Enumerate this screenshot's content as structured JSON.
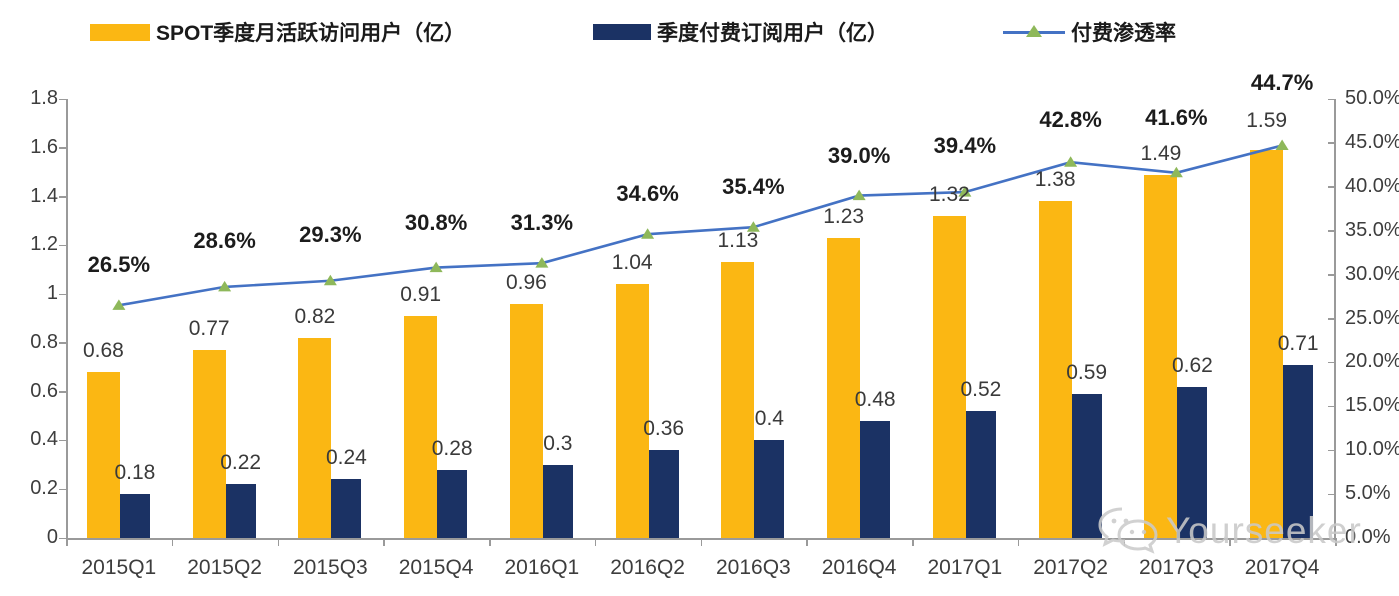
{
  "watermark": {
    "text": "Yourseeker",
    "icon": "wechat-icon"
  },
  "chart_data": {
    "type": "combo-bar-line",
    "categories": [
      "2015Q1",
      "2015Q2",
      "2015Q3",
      "2015Q4",
      "2016Q1",
      "2016Q2",
      "2016Q3",
      "2016Q4",
      "2017Q1",
      "2017Q2",
      "2017Q3",
      "2017Q4"
    ],
    "series": [
      {
        "name": "SPOT季度月活跃访问用户（亿）",
        "type": "bar",
        "axis": "left",
        "color": "#FBB713",
        "values": [
          0.68,
          0.77,
          0.82,
          0.91,
          0.96,
          1.04,
          1.13,
          1.23,
          1.32,
          1.38,
          1.49,
          1.59
        ],
        "labels": [
          "0.68",
          "0.77",
          "0.82",
          "0.91",
          "0.96",
          "1.04",
          "1.13",
          "1.23",
          "1.32",
          "1.38",
          "1.49",
          "1.59"
        ]
      },
      {
        "name": "季度付费订阅用户（亿）",
        "type": "bar",
        "axis": "left",
        "color": "#1B3264",
        "values": [
          0.18,
          0.22,
          0.24,
          0.28,
          0.3,
          0.36,
          0.4,
          0.48,
          0.52,
          0.59,
          0.62,
          0.71
        ],
        "labels": [
          "0.18",
          "0.22",
          "0.24",
          "0.28",
          "0.3",
          "0.36",
          "0.4",
          "0.48",
          "0.52",
          "0.59",
          "0.62",
          "0.71"
        ]
      },
      {
        "name": "付费渗透率",
        "type": "line",
        "axis": "right",
        "color": "#4472C4",
        "marker_color": "#8EB85A",
        "values": [
          26.5,
          28.6,
          29.3,
          30.8,
          31.3,
          34.6,
          35.4,
          39.0,
          39.4,
          42.8,
          41.6,
          44.7
        ],
        "labels": [
          "26.5%",
          "28.6%",
          "29.3%",
          "30.8%",
          "31.3%",
          "34.6%",
          "35.4%",
          "39.0%",
          "39.4%",
          "42.8%",
          "41.6%",
          "44.7%"
        ]
      }
    ],
    "left_axis": {
      "min": 0,
      "max": 1.8,
      "step": 0.2,
      "ticks": [
        "0",
        "0.2",
        "0.4",
        "0.6",
        "0.8",
        "1",
        "1.2",
        "1.4",
        "1.6",
        "1.8"
      ]
    },
    "right_axis": {
      "min": 0,
      "max": 50,
      "step": 5,
      "ticks": [
        "0.0%",
        "5.0%",
        "10.0%",
        "15.0%",
        "20.0%",
        "25.0%",
        "30.0%",
        "35.0%",
        "40.0%",
        "45.0%",
        "50.0%"
      ]
    },
    "grid": false,
    "legend_position": "top",
    "title": ""
  }
}
